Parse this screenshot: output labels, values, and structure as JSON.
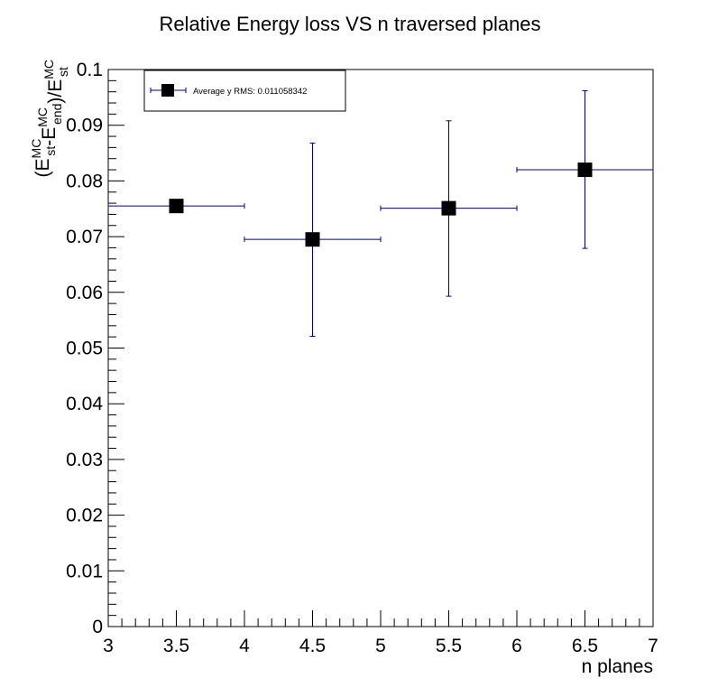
{
  "chart_data": {
    "type": "scatter",
    "title": "Relative Energy loss VS n traversed planes",
    "xlabel": "n planes",
    "ylabel": {
      "parts": [
        "(E",
        "MC",
        "st",
        "-E",
        "MC",
        "end",
        ")/E",
        "MC",
        "st"
      ]
    },
    "xlim": [
      3,
      7
    ],
    "ylim": [
      0,
      0.1
    ],
    "x_ticks": [
      "3",
      "3.5",
      "4",
      "4.5",
      "5",
      "5.5",
      "6",
      "6.5",
      "7"
    ],
    "y_ticks": [
      "0",
      "0.01",
      "0.02",
      "0.03",
      "0.04",
      "0.05",
      "0.06",
      "0.07",
      "0.08",
      "0.09",
      "0.1"
    ],
    "grid": false,
    "legend_position": "top-left",
    "series": [
      {
        "name": "Average y RMS: 0.011058342",
        "color": "#000080",
        "marker_color": "#000000",
        "x": [
          3.5,
          4.5,
          5.5,
          6.5
        ],
        "y": [
          0.0755,
          0.0695,
          0.0751,
          0.082
        ],
        "x_err": [
          0.5,
          0.5,
          0.5,
          0.5
        ],
        "y_err_low": [
          0,
          0.0174,
          0.0158,
          0.0141
        ],
        "y_err_high": [
          0,
          0.0173,
          0.0157,
          0.0142
        ]
      }
    ]
  }
}
